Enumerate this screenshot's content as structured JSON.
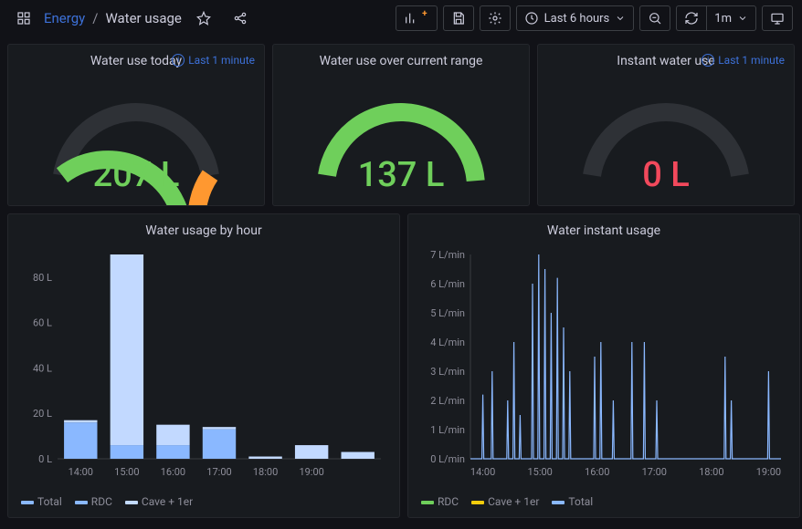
{
  "breadcrumbs": {
    "root": "Energy",
    "page": "Water usage"
  },
  "toolbar": {
    "time_range": "Last 6 hours",
    "refresh_interval": "1m"
  },
  "badge_text": "Last 1 minute",
  "gauges": [
    {
      "title": "Water use today",
      "value_text": "207 L",
      "value": 207,
      "max": 300,
      "value_color": "#6fcf5b",
      "arc_color": "#6fcf5b",
      "threshold_start": 0.78,
      "threshold_color": "#ff9830",
      "show_badge": true
    },
    {
      "title": "Water use over current range",
      "value_text": "137 L",
      "value": 137,
      "max": 140,
      "value_color": "#6fcf5b",
      "arc_color": "#6fcf5b",
      "threshold_start": null,
      "show_badge": false
    },
    {
      "title": "Instant water use",
      "value_text": "0 L",
      "value": 0,
      "max": 10,
      "value_color": "#f2495c",
      "arc_color": "#6fcf5b",
      "threshold_start": null,
      "show_badge": true
    }
  ],
  "bar_chart": {
    "title": "Water usage by hour",
    "y_ticks": [
      0,
      20,
      40,
      60,
      80
    ],
    "y_unit": " L",
    "y_max": 90,
    "x_labels": [
      "14:00",
      "15:00",
      "16:00",
      "17:00",
      "18:00",
      "19:00"
    ],
    "bars": [
      {
        "rdc": 16,
        "cave": 1
      },
      {
        "rdc": 6,
        "cave": 84
      },
      {
        "rdc": 6,
        "cave": 9
      },
      {
        "rdc": 13,
        "cave": 1
      },
      {
        "rdc": 0,
        "cave": 1
      },
      {
        "rdc": 0,
        "cave": 6
      },
      {
        "rdc": 0,
        "cave": 3
      }
    ],
    "colors": {
      "total": "#8ab8ff",
      "rdc": "#8ab8ff",
      "cave": "#c2d9ff"
    },
    "legend": [
      {
        "label": "Total",
        "color": "#8ab8ff"
      },
      {
        "label": "RDC",
        "color": "#8ab8ff"
      },
      {
        "label": "Cave + 1er",
        "color": "#c2d9ff"
      }
    ]
  },
  "line_chart": {
    "title": "Water instant usage",
    "y_ticks": [
      0,
      1,
      2,
      3,
      4,
      5,
      6,
      7
    ],
    "y_unit": " L/min",
    "y_max": 7,
    "x_labels": [
      "14:00",
      "15:00",
      "16:00",
      "17:00",
      "18:00",
      "19:00"
    ],
    "spikes": [
      {
        "x": 0.04,
        "y": 2.2
      },
      {
        "x": 0.07,
        "y": 3.0
      },
      {
        "x": 0.12,
        "y": 2.0
      },
      {
        "x": 0.14,
        "y": 4.0
      },
      {
        "x": 0.16,
        "y": 1.5
      },
      {
        "x": 0.2,
        "y": 6.0
      },
      {
        "x": 0.22,
        "y": 7.0
      },
      {
        "x": 0.24,
        "y": 6.5
      },
      {
        "x": 0.26,
        "y": 5.0
      },
      {
        "x": 0.28,
        "y": 6.2
      },
      {
        "x": 0.3,
        "y": 4.5
      },
      {
        "x": 0.32,
        "y": 3.0
      },
      {
        "x": 0.4,
        "y": 3.5
      },
      {
        "x": 0.42,
        "y": 4.0
      },
      {
        "x": 0.46,
        "y": 2.0
      },
      {
        "x": 0.52,
        "y": 4.0
      },
      {
        "x": 0.56,
        "y": 4.0
      },
      {
        "x": 0.6,
        "y": 2.0
      },
      {
        "x": 0.82,
        "y": 3.5
      },
      {
        "x": 0.84,
        "y": 2.0
      },
      {
        "x": 0.96,
        "y": 3.0
      }
    ],
    "line_color": "#8ab8ff",
    "legend": [
      {
        "label": "RDC",
        "color": "#6fcf5b"
      },
      {
        "label": "Cave + 1er",
        "color": "#f2cc0c"
      },
      {
        "label": "Total",
        "color": "#8ab8ff"
      }
    ]
  }
}
